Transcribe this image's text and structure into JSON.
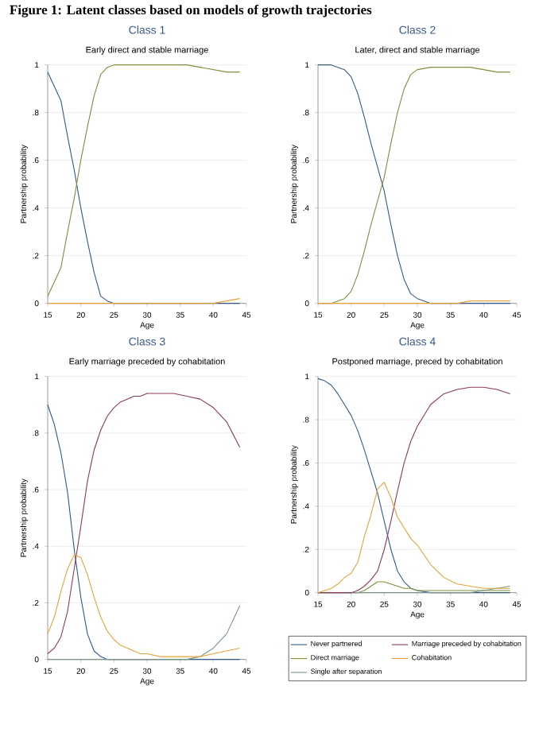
{
  "chart_data": [
    {
      "type": "line",
      "title": "Class 1",
      "subtitle": "Early direct and stable marriage",
      "xlabel": "Age",
      "ylabel": "Partnership probability",
      "annotations": [
        "Figure 1:      Latent classes based on models of growth trajectories"
      ],
      "x": [
        15,
        16,
        17,
        18,
        19,
        20,
        21,
        22,
        23,
        24,
        25,
        26,
        27,
        28,
        29,
        30,
        32,
        34,
        36,
        38,
        40,
        42,
        44
      ],
      "xlim": [
        15,
        45
      ],
      "ylim": [
        0,
        1
      ],
      "xticks": [
        15,
        20,
        25,
        30,
        35,
        40,
        45
      ],
      "yticks": [
        0,
        {
          "value": 0.2,
          "label": ".2"
        },
        {
          "value": 0.4,
          "label": ".4"
        },
        {
          "value": 0.6,
          "label": ".6"
        },
        {
          "value": 0.8,
          "label": ".8"
        },
        1
      ],
      "grid": "y",
      "series": [
        {
          "color": "#34588a",
          "values": [
            0.97,
            0.91,
            0.85,
            0.7,
            0.56,
            0.4,
            0.26,
            0.13,
            0.03,
            0.01,
            0,
            0,
            0,
            0,
            0,
            0,
            0,
            0,
            0,
            0,
            0,
            0,
            0
          ]
        },
        {
          "color": "#7f8f3a",
          "values": [
            0.03,
            0.09,
            0.15,
            0.3,
            0.44,
            0.6,
            0.74,
            0.87,
            0.96,
            0.99,
            1,
            1,
            1,
            1,
            1,
            1,
            1,
            1,
            1,
            0.99,
            0.98,
            0.97,
            0.97
          ]
        },
        {
          "color": "#e8a13a",
          "values": [
            0,
            0,
            0,
            0,
            0,
            0,
            0,
            0,
            0,
            0,
            0,
            0,
            0,
            0,
            0,
            0,
            0,
            0,
            0,
            0,
            0,
            0.01,
            0.02
          ]
        }
      ]
    },
    {
      "type": "line",
      "title": "Class 2",
      "subtitle": "Later, direct and stable marriage",
      "xlabel": "Age",
      "ylabel": "Partnership probability",
      "x": [
        15,
        16,
        17,
        18,
        19,
        20,
        21,
        22,
        23,
        24,
        25,
        26,
        27,
        28,
        29,
        30,
        32,
        34,
        36,
        38,
        40,
        42,
        44
      ],
      "xlim": [
        15,
        45
      ],
      "ylim": [
        0,
        1
      ],
      "xticks": [
        15,
        20,
        25,
        30,
        35,
        40,
        45
      ],
      "yticks": [
        0,
        {
          "value": 0.2,
          "label": ".2"
        },
        {
          "value": 0.4,
          "label": ".4"
        },
        {
          "value": 0.6,
          "label": ".6"
        },
        {
          "value": 0.8,
          "label": ".8"
        },
        1
      ],
      "grid": "y",
      "series": [
        {
          "color": "#34588a",
          "values": [
            1,
            1,
            1,
            0.99,
            0.98,
            0.95,
            0.88,
            0.78,
            0.67,
            0.57,
            0.47,
            0.33,
            0.2,
            0.1,
            0.04,
            0.02,
            0,
            0,
            0,
            0,
            0,
            0,
            0
          ]
        },
        {
          "color": "#7f8f3a",
          "values": [
            0,
            0,
            0,
            0.01,
            0.02,
            0.05,
            0.12,
            0.22,
            0.33,
            0.43,
            0.53,
            0.67,
            0.8,
            0.9,
            0.96,
            0.98,
            0.99,
            0.99,
            0.99,
            0.99,
            0.98,
            0.97,
            0.97
          ]
        },
        {
          "color": "#e8a13a",
          "values": [
            0,
            0,
            0,
            0,
            0,
            0,
            0,
            0,
            0,
            0,
            0,
            0,
            0,
            0,
            0,
            0,
            0,
            0,
            0,
            0.01,
            0.01,
            0.01,
            0.01
          ]
        }
      ]
    },
    {
      "type": "line",
      "title": "Class 3",
      "subtitle": "Early marriage preceded by cohabitation",
      "xlabel": "Age",
      "ylabel": "Partnership probability",
      "x": [
        15,
        16,
        17,
        18,
        19,
        20,
        21,
        22,
        23,
        24,
        25,
        26,
        27,
        28,
        29,
        30,
        32,
        34,
        36,
        38,
        40,
        42,
        44
      ],
      "xlim": [
        15,
        45
      ],
      "ylim": [
        0,
        1
      ],
      "xticks": [
        15,
        20,
        25,
        30,
        35,
        40,
        45
      ],
      "yticks": [
        0,
        {
          "value": 0.2,
          "label": ".2"
        },
        {
          "value": 0.4,
          "label": ".4"
        },
        {
          "value": 0.6,
          "label": ".6"
        },
        {
          "value": 0.8,
          "label": ".8"
        },
        1
      ],
      "grid": "y",
      "series": [
        {
          "color": "#34588a",
          "values": [
            0.9,
            0.83,
            0.73,
            0.59,
            0.39,
            0.22,
            0.09,
            0.03,
            0.01,
            0,
            0,
            0,
            0,
            0,
            0,
            0,
            0,
            0,
            0,
            0,
            0,
            0,
            0
          ]
        },
        {
          "color": "#7a9488",
          "values": [
            0,
            0,
            0,
            0,
            0,
            0,
            0,
            0,
            0,
            0,
            0,
            0,
            0,
            0,
            0,
            0,
            0,
            0,
            0,
            0.01,
            0.04,
            0.09,
            0.19
          ]
        },
        {
          "color": "#8e3a55",
          "values": [
            0.02,
            0.04,
            0.08,
            0.17,
            0.32,
            0.47,
            0.63,
            0.74,
            0.81,
            0.86,
            0.89,
            0.91,
            0.92,
            0.93,
            0.93,
            0.94,
            0.94,
            0.94,
            0.93,
            0.92,
            0.89,
            0.84,
            0.75
          ]
        },
        {
          "color": "#e8a13a",
          "values": [
            0.09,
            0.15,
            0.24,
            0.32,
            0.37,
            0.36,
            0.3,
            0.22,
            0.15,
            0.1,
            0.07,
            0.05,
            0.04,
            0.03,
            0.02,
            0.02,
            0.01,
            0.01,
            0.01,
            0.01,
            0.02,
            0.03,
            0.04
          ]
        }
      ]
    },
    {
      "type": "line",
      "title": "Class 4",
      "subtitle": "Postponed marriage, preced by cohabitation",
      "xlabel": "Age",
      "ylabel": "Partnership probability",
      "x": [
        15,
        16,
        17,
        18,
        19,
        20,
        21,
        22,
        23,
        24,
        25,
        26,
        27,
        28,
        29,
        30,
        32,
        34,
        36,
        38,
        40,
        42,
        44
      ],
      "xlim": [
        15,
        45
      ],
      "ylim": [
        0,
        1
      ],
      "xticks": [
        15,
        20,
        25,
        30,
        35,
        40,
        45
      ],
      "yticks": [
        0,
        {
          "value": 0.2,
          "label": ".2"
        },
        {
          "value": 0.4,
          "label": ".4"
        },
        {
          "value": 0.6,
          "label": ".6"
        },
        {
          "value": 0.8,
          "label": ".8"
        },
        1
      ],
      "grid": "y",
      "legend": "bottom",
      "series": [
        {
          "name": "Never partnered",
          "color": "#34588a",
          "values": [
            0.99,
            0.98,
            0.96,
            0.92,
            0.87,
            0.82,
            0.75,
            0.66,
            0.56,
            0.46,
            0.33,
            0.2,
            0.1,
            0.05,
            0.02,
            0.01,
            0,
            0,
            0,
            0,
            0,
            0,
            0
          ]
        },
        {
          "name": "Direct marriage",
          "color": "#7f8f3a",
          "values": [
            0,
            0,
            0,
            0,
            0,
            0,
            0,
            0.01,
            0.03,
            0.05,
            0.05,
            0.04,
            0.03,
            0.02,
            0.02,
            0.01,
            0.01,
            0.01,
            0.01,
            0.01,
            0.01,
            0.01,
            0.01
          ]
        },
        {
          "name": "Single after separation",
          "color": "#7a9488",
          "values": [
            0,
            0,
            0,
            0,
            0,
            0,
            0,
            0,
            0,
            0,
            0,
            0,
            0,
            0,
            0,
            0,
            0,
            0,
            0,
            0,
            0.01,
            0.02,
            0.03
          ]
        },
        {
          "name": "Marriage preceded by cohabitation",
          "color": "#8e3a55",
          "values": [
            0,
            0,
            0,
            0,
            0,
            0,
            0.01,
            0.03,
            0.06,
            0.1,
            0.2,
            0.33,
            0.47,
            0.6,
            0.7,
            0.77,
            0.87,
            0.92,
            0.94,
            0.95,
            0.95,
            0.94,
            0.92
          ]
        },
        {
          "name": "Cohabitation",
          "color": "#e8a13a",
          "values": [
            0,
            0.01,
            0.02,
            0.04,
            0.07,
            0.09,
            0.14,
            0.26,
            0.36,
            0.48,
            0.51,
            0.44,
            0.35,
            0.3,
            0.25,
            0.22,
            0.13,
            0.07,
            0.04,
            0.03,
            0.02,
            0.02,
            0.02
          ]
        }
      ]
    }
  ]
}
